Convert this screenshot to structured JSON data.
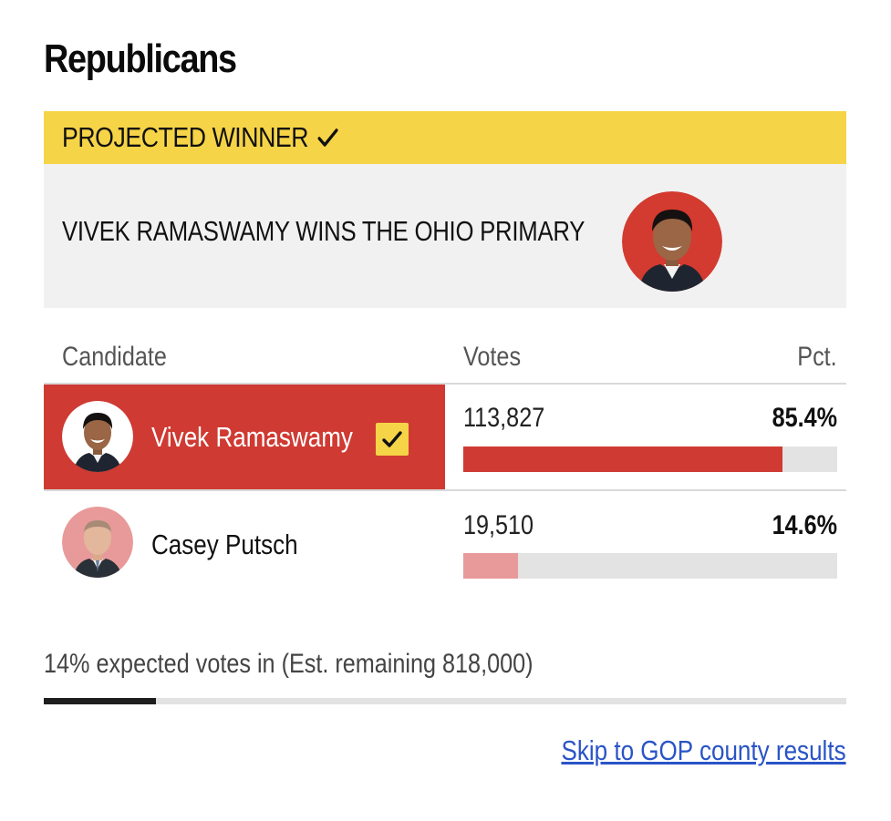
{
  "section": {
    "title": "Republicans"
  },
  "banner": {
    "label": "PROJECTED WINNER",
    "icon": "checkmark-icon"
  },
  "winner_panel": {
    "headline": "VIVEK RAMASWAMY WINS THE OHIO PRIMARY"
  },
  "table": {
    "columns": {
      "candidate": "Candidate",
      "votes": "Votes",
      "pct": "Pct."
    },
    "rows": [
      {
        "name": "Vivek Ramaswamy",
        "votes": "113,827",
        "pct": "85.4%",
        "share": 0.854,
        "winner": true
      },
      {
        "name": "Casey Putsch",
        "votes": "19,510",
        "pct": "14.6%",
        "share": 0.146,
        "winner": false
      }
    ]
  },
  "reporting": {
    "status": "14% expected votes in (Est. remaining 818,000)",
    "fraction": 0.14
  },
  "link": {
    "label": "Skip to GOP county results"
  },
  "colors": {
    "gop_red": "#cf3a32",
    "gop_light_red": "#e89a9a",
    "banner_yellow": "#f6d447",
    "link_blue": "#2a54c6"
  }
}
